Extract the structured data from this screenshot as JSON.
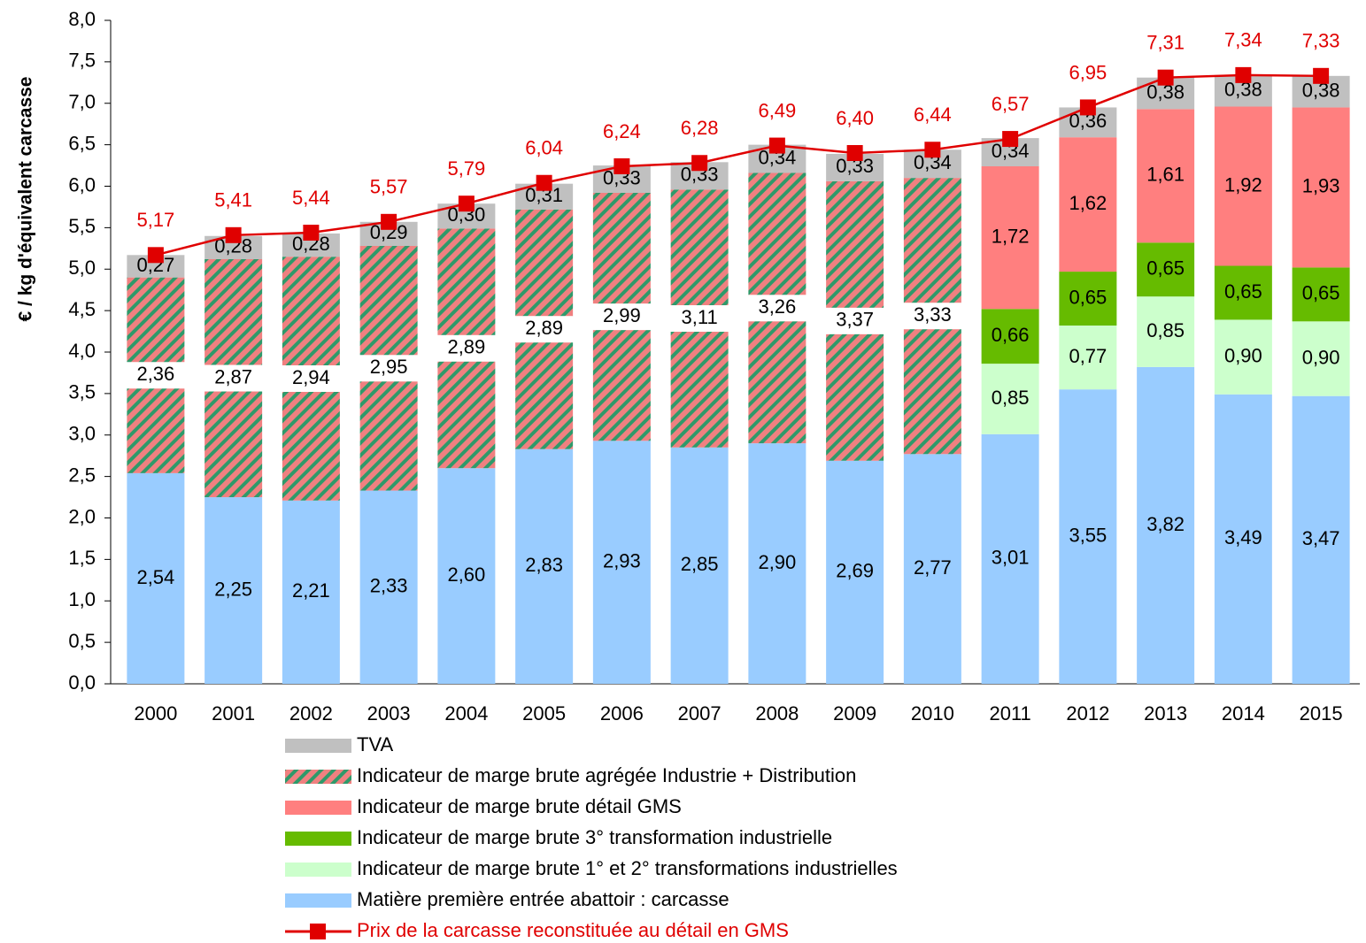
{
  "chart_data": {
    "type": "bar",
    "stacked": true,
    "y_label": "€ / kg d'équivalent carcasse",
    "categories": [
      "2000",
      "2001",
      "2002",
      "2003",
      "2004",
      "2005",
      "2006",
      "2007",
      "2008",
      "2009",
      "2010",
      "2011",
      "2012",
      "2013",
      "2014",
      "2015"
    ],
    "ylim": [
      0,
      8
    ],
    "yticks": [
      {
        "value": 0,
        "label": "0,0"
      },
      {
        "value": 0.5,
        "label": "0,5"
      },
      {
        "value": 1,
        "label": "1,0"
      },
      {
        "value": 1.5,
        "label": "1,5"
      },
      {
        "value": 2,
        "label": "2,0"
      },
      {
        "value": 2.5,
        "label": "2,5"
      },
      {
        "value": 3,
        "label": "3,0"
      },
      {
        "value": 3.5,
        "label": "3,5"
      },
      {
        "value": 4,
        "label": "4,0"
      },
      {
        "value": 4.5,
        "label": "4,5"
      },
      {
        "value": 5,
        "label": "5,0"
      },
      {
        "value": 5.5,
        "label": "5,5"
      },
      {
        "value": 6,
        "label": "6,0"
      },
      {
        "value": 6.5,
        "label": "6,5"
      },
      {
        "value": 7,
        "label": "7,0"
      },
      {
        "value": 7.5,
        "label": "7,5"
      },
      {
        "value": 8,
        "label": "8,0"
      }
    ],
    "series": [
      {
        "name": "Matière première entrée abattoir : carcasse",
        "color": "#99ccff",
        "values": [
          2.54,
          2.25,
          2.21,
          2.33,
          2.6,
          2.83,
          2.93,
          2.85,
          2.9,
          2.69,
          2.77,
          3.01,
          3.55,
          3.82,
          3.49,
          3.47
        ],
        "value_labels": [
          "2,54",
          "2,25",
          "2,21",
          "2,33",
          "2,60",
          "2,83",
          "2,93",
          "2,85",
          "2,90",
          "2,69",
          "2,77",
          "3,01",
          "3,55",
          "3,82",
          "3,49",
          "3,47"
        ]
      },
      {
        "name": "Indicateur de marge brute 1° et 2° transformations industrielles",
        "color": "#ccffcc",
        "values": [
          null,
          null,
          null,
          null,
          null,
          null,
          null,
          null,
          null,
          null,
          null,
          0.85,
          0.77,
          0.85,
          0.9,
          0.9
        ],
        "value_labels": [
          null,
          null,
          null,
          null,
          null,
          null,
          null,
          null,
          null,
          null,
          null,
          "0,85",
          "0,77",
          "0,85",
          "0,90",
          "0,90"
        ]
      },
      {
        "name": "Indicateur de marge brute 3° transformation industrielle",
        "color": "#66bb00",
        "values": [
          null,
          null,
          null,
          null,
          null,
          null,
          null,
          null,
          null,
          null,
          null,
          0.66,
          0.65,
          0.65,
          0.65,
          0.65
        ],
        "value_labels": [
          null,
          null,
          null,
          null,
          null,
          null,
          null,
          null,
          null,
          null,
          null,
          "0,66",
          "0,65",
          "0,65",
          "0,65",
          "0,65"
        ]
      },
      {
        "name": "Indicateur de marge brute détail GMS",
        "color": "#ff7f7f",
        "values": [
          null,
          null,
          null,
          null,
          null,
          null,
          null,
          null,
          null,
          null,
          null,
          1.72,
          1.62,
          1.61,
          1.92,
          1.93
        ],
        "value_labels": [
          null,
          null,
          null,
          null,
          null,
          null,
          null,
          null,
          null,
          null,
          null,
          "1,72",
          "1,62",
          "1,61",
          "1,92",
          "1,93"
        ]
      },
      {
        "name": "Indicateur de marge brute agrégée Industrie + Distribution",
        "color": "#f08080",
        "hatch_color": "#2e9a6a",
        "values": [
          2.36,
          2.87,
          2.94,
          2.95,
          2.89,
          2.89,
          2.99,
          3.11,
          3.26,
          3.37,
          3.33,
          null,
          null,
          null,
          null,
          null
        ],
        "value_labels": [
          "2,36",
          "2,87",
          "2,94",
          "2,95",
          "2,89",
          "2,89",
          "2,99",
          "3,11",
          "3,26",
          "3,37",
          "3,33",
          null,
          null,
          null,
          null,
          null
        ]
      },
      {
        "name": "TVA",
        "color": "#c0c0c0",
        "values": [
          0.27,
          0.28,
          0.28,
          0.29,
          0.3,
          0.31,
          0.33,
          0.33,
          0.34,
          0.33,
          0.34,
          0.34,
          0.36,
          0.38,
          0.38,
          0.38
        ],
        "value_labels": [
          "0,27",
          "0,28",
          "0,28",
          "0,29",
          "0,30",
          "0,31",
          "0,33",
          "0,33",
          "0,34",
          "0,33",
          "0,34",
          "0,34",
          "0,36",
          "0,38",
          "0,38",
          "0,38"
        ]
      },
      {
        "name": "Prix de la carcasse reconstituée au détail en GMS",
        "color": "#e00000",
        "type": "line",
        "values": [
          5.17,
          5.41,
          5.44,
          5.57,
          5.79,
          6.04,
          6.24,
          6.28,
          6.49,
          6.4,
          6.44,
          6.57,
          6.95,
          7.31,
          7.34,
          7.33
        ],
        "value_labels": [
          "5,17",
          "5,41",
          "5,44",
          "5,57",
          "5,79",
          "6,04",
          "6,24",
          "6,28",
          "6,49",
          "6,40",
          "6,44",
          "6,57",
          "6,95",
          "7,31",
          "7,34",
          "7,33"
        ]
      }
    ]
  }
}
